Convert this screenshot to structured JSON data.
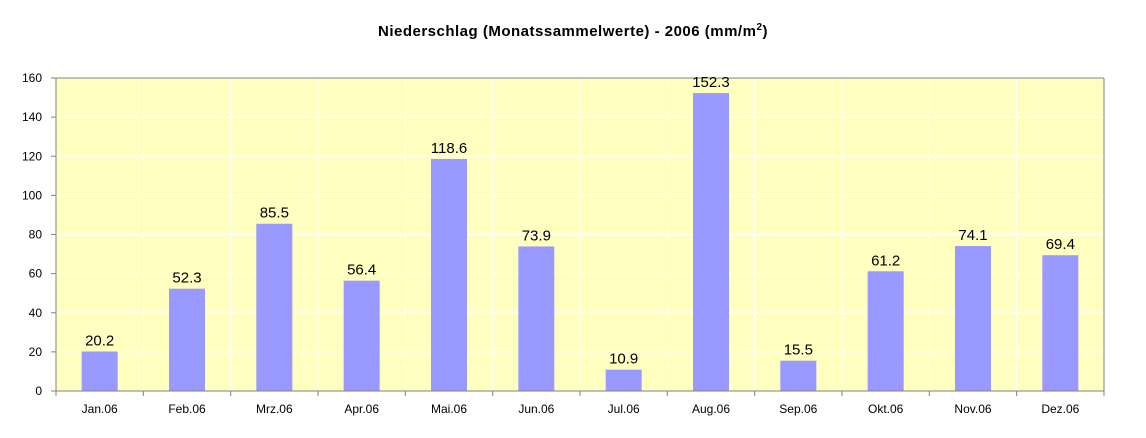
{
  "chart_data": {
    "type": "bar",
    "title_main": "Niederschlag (Monatssammelwerte) - 2006 (mm/m",
    "title_sup": "2",
    "title_end": ")",
    "categories": [
      "Jan.06",
      "Feb.06",
      "Mrz.06",
      "Apr.06",
      "Mai.06",
      "Jun.06",
      "Jul.06",
      "Aug.06",
      "Sep.06",
      "Okt.06",
      "Nov.06",
      "Dez.06"
    ],
    "values": [
      20.2,
      52.3,
      85.5,
      56.4,
      118.6,
      73.9,
      10.9,
      152.3,
      15.5,
      61.2,
      74.1,
      69.4
    ],
    "value_labels": [
      "20.2",
      "52.3",
      "85.5",
      "56.4",
      "118.6",
      "73.9",
      "10.9",
      "152.3",
      "15.5",
      "61.2",
      "74.1",
      "69.4"
    ],
    "ylim": [
      0,
      160
    ],
    "yticks": [
      "0",
      "20",
      "40",
      "60",
      "80",
      "100",
      "120",
      "140",
      "160"
    ],
    "xlabel": "",
    "ylabel": "",
    "grid": true,
    "legend": false,
    "colors": {
      "bar": "#9999ff",
      "plot_background": "#ffffc0",
      "grid": "#ffffff",
      "axis": "#808080"
    }
  }
}
